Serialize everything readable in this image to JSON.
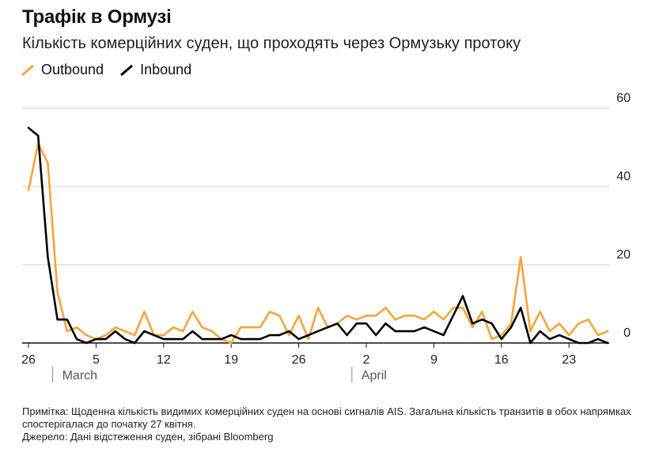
{
  "title": "Трафік в Ормузі",
  "subtitle": "Кількість комерційних суден, що проходять через Ормузьку протоку",
  "legend": [
    {
      "label": "Outbound",
      "color": "#f5a53a"
    },
    {
      "label": "Inbound",
      "color": "#000000"
    }
  ],
  "notes": {
    "note": "Примітка: Щоденна кількість видимих комерційних суден на основі сигналів AIS. Загальна кількість транзитів в обох напрямках спостерігалася до початку 27 квітня.",
    "source": "Джерело: Дані відстеження суден, зібрані Bloomberg"
  },
  "chart_data": {
    "type": "line",
    "title": "Трафік в Ормузі",
    "subtitle": "Кількість комерційних суден, що проходять через Ормузьку протоку",
    "x_start_label": "26",
    "x_ticks": [
      {
        "day": 0,
        "label": "26"
      },
      {
        "day": 7,
        "label": "5"
      },
      {
        "day": 14,
        "label": "12"
      },
      {
        "day": 21,
        "label": "19"
      },
      {
        "day": 28,
        "label": "26"
      },
      {
        "day": 35,
        "label": "2"
      },
      {
        "day": 42,
        "label": "9"
      },
      {
        "day": 49,
        "label": "16"
      },
      {
        "day": 56,
        "label": "23"
      }
    ],
    "months": [
      {
        "label": "March",
        "start_day": 3,
        "end_day": 34
      },
      {
        "label": "April",
        "start_day": 34,
        "end_day": 61
      }
    ],
    "y_ticks": [
      0,
      20,
      40,
      60
    ],
    "ylim": [
      0,
      60
    ],
    "xlim": [
      -1,
      61
    ],
    "grid": true,
    "series": [
      {
        "name": "Outbound",
        "color": "#f5a53a",
        "values": [
          39,
          51,
          46,
          13,
          3,
          4,
          2,
          1,
          2,
          4,
          3,
          2,
          8,
          2,
          2,
          4,
          3,
          8,
          4,
          3,
          1,
          0,
          4,
          4,
          4,
          8,
          7,
          2,
          7,
          1,
          9,
          4,
          5,
          7,
          6,
          7,
          7,
          9,
          6,
          7,
          7,
          6,
          8,
          6,
          9,
          9,
          4,
          8,
          1,
          2,
          5,
          22,
          3,
          8,
          3,
          5,
          2,
          5,
          6,
          2,
          3
        ]
      },
      {
        "name": "Inbound",
        "color": "#000000",
        "values": [
          55,
          53,
          22,
          6,
          6,
          1,
          0,
          1,
          1,
          3,
          1,
          0,
          3,
          2,
          1,
          1,
          1,
          3,
          1,
          1,
          1,
          2,
          1,
          1,
          1,
          2,
          2,
          3,
          1,
          2,
          3,
          4,
          5,
          2,
          5,
          5,
          2,
          5,
          3,
          3,
          3,
          4,
          3,
          2,
          7,
          12,
          5,
          6,
          5,
          1,
          4,
          9,
          0,
          3,
          1,
          2,
          1,
          0,
          0,
          1,
          0
        ]
      }
    ]
  }
}
